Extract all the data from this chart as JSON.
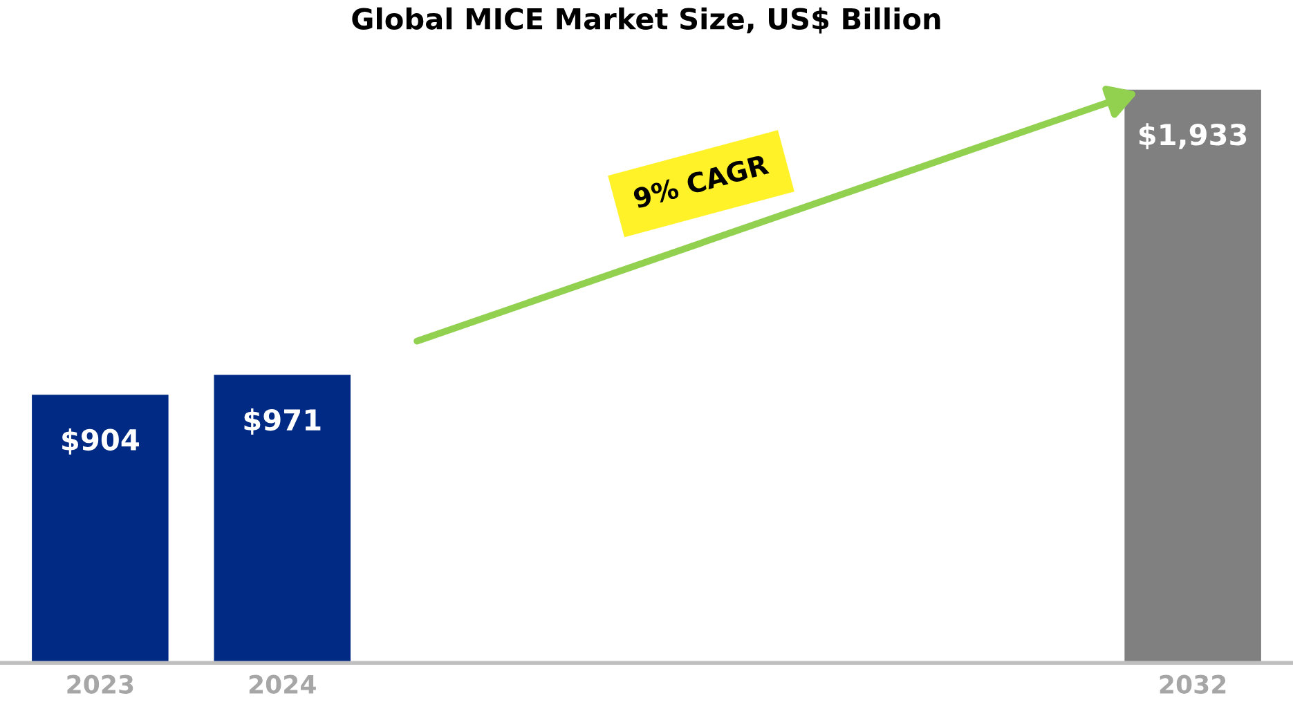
{
  "chart_data": {
    "type": "bar",
    "title": "Global MICE Market Size, US$ Billion",
    "categories": [
      "2023",
      "2024",
      null,
      null,
      null,
      null,
      "2032"
    ],
    "values": [
      904,
      971,
      null,
      null,
      null,
      null,
      1933
    ],
    "colors": [
      "#002a84",
      "#002a84",
      "#002a84",
      "#002a84",
      "#002a84",
      "#002a84",
      "#808080"
    ],
    "value_labels": [
      "$904",
      "$971",
      null,
      null,
      null,
      null,
      "$1,933"
    ],
    "tick_labels": "x",
    "grid": false,
    "annotations": [
      "9% CAGR"
    ]
  }
}
